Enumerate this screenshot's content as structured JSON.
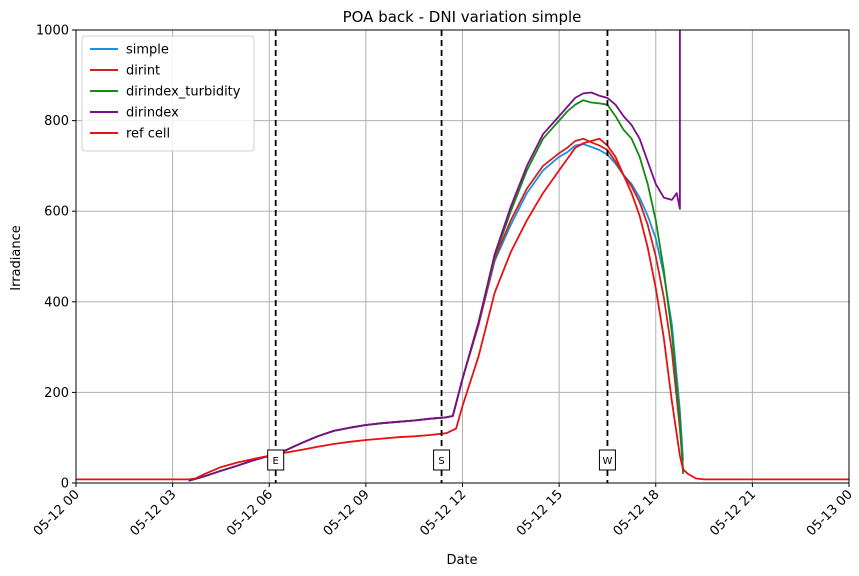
{
  "chart_data": {
    "type": "line",
    "title": "POA back - DNI variation simple",
    "xlabel": "Date",
    "ylabel": "Irradiance",
    "x_unit": "hours after 05-12 00:00",
    "xlim": [
      0,
      24
    ],
    "ylim": [
      0,
      1000
    ],
    "yticks": [
      "0",
      "200",
      "400",
      "600",
      "800",
      "1000"
    ],
    "xticks": [
      {
        "value": 0,
        "label": "05-12 00"
      },
      {
        "value": 3,
        "label": "05-12 03"
      },
      {
        "value": 6,
        "label": "05-12 06"
      },
      {
        "value": 9,
        "label": "05-12 09"
      },
      {
        "value": 12,
        "label": "05-12 12"
      },
      {
        "value": 15,
        "label": "05-12 15"
      },
      {
        "value": 18,
        "label": "05-12 18"
      },
      {
        "value": 21,
        "label": "05-12 21"
      },
      {
        "value": 24,
        "label": "05-13 00"
      }
    ],
    "grid": true,
    "legend_position": "top-left",
    "markers": [
      {
        "label": "E",
        "x": 6.2
      },
      {
        "label": "S",
        "x": 11.35
      },
      {
        "label": "W",
        "x": 16.5
      }
    ],
    "series": [
      {
        "name": "simple",
        "color": "#1f8fe0",
        "x": [
          3.5,
          4.0,
          4.5,
          5.0,
          5.5,
          6.0,
          6.5,
          7.0,
          7.5,
          8.0,
          8.5,
          9.0,
          9.5,
          10.0,
          10.5,
          11.0,
          11.5,
          11.7,
          12.0,
          12.5,
          13.0,
          13.5,
          14.0,
          14.5,
          15.0,
          15.25,
          15.5,
          15.75,
          16.0,
          16.25,
          16.5,
          16.75,
          17.0,
          17.25,
          17.5,
          17.75,
          18.0,
          18.25,
          18.5,
          18.75,
          18.85
        ],
        "y": [
          5,
          15,
          27,
          38,
          50,
          60,
          72,
          88,
          103,
          115,
          122,
          128,
          132,
          135,
          138,
          142,
          145,
          148,
          230,
          350,
          490,
          570,
          640,
          690,
          720,
          730,
          745,
          748,
          742,
          735,
          725,
          705,
          680,
          660,
          630,
          590,
          540,
          460,
          350,
          160,
          50
        ]
      },
      {
        "name": "dirint",
        "color": "#cc2222",
        "x": [
          3.5,
          4.0,
          4.5,
          5.0,
          5.5,
          6.0,
          6.5,
          7.0,
          7.5,
          8.0,
          8.5,
          9.0,
          9.5,
          10.0,
          10.5,
          11.0,
          11.5,
          11.7,
          12.0,
          12.5,
          13.0,
          13.5,
          14.0,
          14.5,
          15.0,
          15.25,
          15.5,
          15.75,
          16.0,
          16.25,
          16.5,
          16.75,
          17.0,
          17.25,
          17.5,
          17.75,
          18.0,
          18.25,
          18.5,
          18.75,
          18.85
        ],
        "y": [
          5,
          15,
          27,
          38,
          50,
          60,
          72,
          88,
          103,
          115,
          122,
          128,
          132,
          135,
          138,
          142,
          145,
          148,
          230,
          350,
          495,
          580,
          650,
          700,
          728,
          740,
          755,
          760,
          752,
          745,
          735,
          710,
          680,
          655,
          620,
          570,
          500,
          410,
          290,
          120,
          30
        ]
      },
      {
        "name": "dirindex_turbidity",
        "color": "#138a13",
        "x": [
          3.5,
          4.0,
          4.5,
          5.0,
          5.5,
          6.0,
          6.5,
          7.0,
          7.5,
          8.0,
          8.5,
          9.0,
          9.5,
          10.0,
          10.5,
          11.0,
          11.5,
          11.7,
          12.0,
          12.5,
          13.0,
          13.5,
          14.0,
          14.5,
          15.0,
          15.25,
          15.5,
          15.75,
          16.0,
          16.25,
          16.5,
          16.75,
          17.0,
          17.25,
          17.5,
          17.75,
          18.0,
          18.25,
          18.5,
          18.75,
          18.85
        ],
        "y": [
          5,
          15,
          27,
          38,
          50,
          60,
          72,
          88,
          103,
          115,
          122,
          128,
          132,
          135,
          138,
          142,
          145,
          148,
          230,
          355,
          500,
          600,
          690,
          760,
          800,
          820,
          835,
          845,
          840,
          838,
          835,
          810,
          780,
          760,
          720,
          660,
          580,
          470,
          330,
          140,
          20
        ]
      },
      {
        "name": "dirindex",
        "color": "#7a0f8a",
        "x": [
          3.5,
          4.0,
          4.5,
          5.0,
          5.5,
          6.0,
          6.5,
          7.0,
          7.5,
          8.0,
          8.5,
          9.0,
          9.5,
          10.0,
          10.5,
          11.0,
          11.5,
          11.7,
          12.0,
          12.5,
          13.0,
          13.5,
          14.0,
          14.5,
          15.0,
          15.25,
          15.5,
          15.75,
          16.0,
          16.25,
          16.5,
          16.75,
          17.0,
          17.25,
          17.5,
          17.75,
          18.0,
          18.25,
          18.5,
          18.65,
          18.75,
          18.75,
          18.75
        ],
        "y": [
          5,
          15,
          27,
          38,
          50,
          60,
          72,
          88,
          103,
          115,
          122,
          128,
          132,
          135,
          138,
          142,
          145,
          148,
          230,
          355,
          505,
          610,
          700,
          770,
          810,
          830,
          850,
          860,
          862,
          855,
          850,
          835,
          810,
          790,
          760,
          710,
          660,
          630,
          625,
          640,
          605,
          700,
          1000
        ]
      },
      {
        "name": "ref cell",
        "color": "#e81010",
        "x": [
          0,
          3.5,
          3.7,
          4.0,
          4.5,
          5.0,
          5.5,
          6.0,
          6.5,
          7.0,
          7.5,
          8.0,
          8.5,
          9.0,
          9.5,
          10.0,
          10.5,
          11.0,
          11.5,
          11.8,
          12.0,
          12.5,
          13.0,
          13.5,
          14.0,
          14.5,
          15.0,
          15.25,
          15.5,
          15.75,
          16.0,
          16.25,
          16.5,
          16.75,
          17.0,
          17.25,
          17.5,
          17.75,
          18.0,
          18.25,
          18.5,
          18.75,
          18.85,
          19.0,
          19.25,
          19.5,
          24.0
        ],
        "y": [
          8,
          8,
          10,
          20,
          35,
          45,
          53,
          60,
          67,
          73,
          80,
          86,
          91,
          95,
          98,
          101,
          103,
          106,
          110,
          120,
          170,
          280,
          420,
          510,
          580,
          640,
          690,
          715,
          740,
          750,
          755,
          760,
          745,
          720,
          680,
          640,
          590,
          520,
          430,
          320,
          180,
          60,
          30,
          20,
          10,
          8,
          8
        ]
      }
    ]
  }
}
